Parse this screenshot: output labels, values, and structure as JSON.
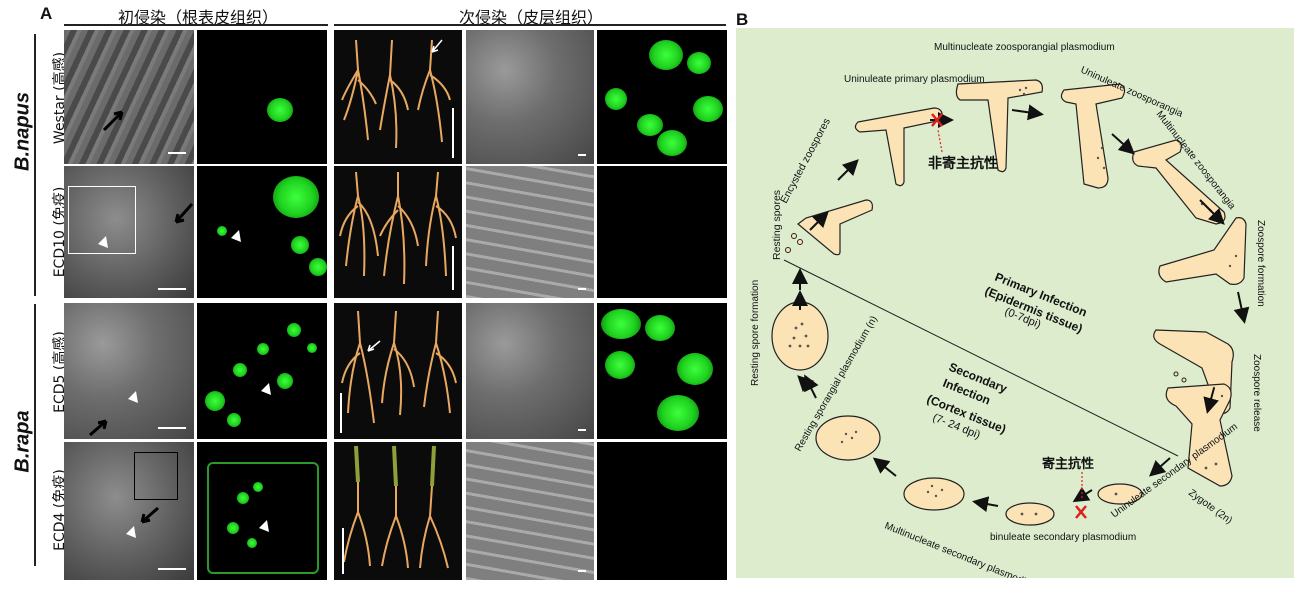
{
  "panel_a": {
    "letter": "A",
    "header_primary": "初侵染（根表皮组织）",
    "header_secondary": "次侵染（皮层组织）",
    "species": [
      "B.napus",
      "B.rapa"
    ],
    "rows": [
      {
        "label": "Westar (高感)"
      },
      {
        "label": "ECD10 (免疫)"
      },
      {
        "label": "ECD5 (高感)"
      },
      {
        "label": "ECD4 (免疫)"
      }
    ]
  },
  "panel_b": {
    "letter": "B",
    "labels": {
      "resting_spores": "Resting spores",
      "encysted_zoospores": "Encysted zoospores",
      "uninucleate_primary": "Uninuleate primary plasmodium",
      "multinucleate_zoosporangial": "Multinucleate zoosporangial plasmodium",
      "uninucleate_zoosporangia": "Uninuleate zoosporangia",
      "multinucleate_zoosporangia": "Multinucleate zoosporangia",
      "zoospore_formation": "Zoospore formation",
      "zoospore_release": "Zoospore release",
      "zygote": "Zygote (2n)",
      "uninucleate_secondary": "Uninuleate secondary plasmodium",
      "binucleate_secondary": "binuleate secondary plasmodium",
      "multinucleate_secondary": "Multinucleate secondary plasmodium",
      "resting_sporangial": "Resting sporangial plasmodium (n)",
      "resting_spore_formation": "Resting spore formation",
      "primary_infection": "Primary Infection",
      "primary_tissue": "(Epidermis tissue)",
      "primary_dpi": "(0-7dpi)",
      "secondary_infection_1": "Secondary",
      "secondary_infection_2": "Infection",
      "secondary_tissue": "(Cortex tissue)",
      "secondary_dpi": "(7- 24 dpi)",
      "nonhost_resistance": "非寄主抗性",
      "host_resistance": "寄主抗性"
    }
  }
}
